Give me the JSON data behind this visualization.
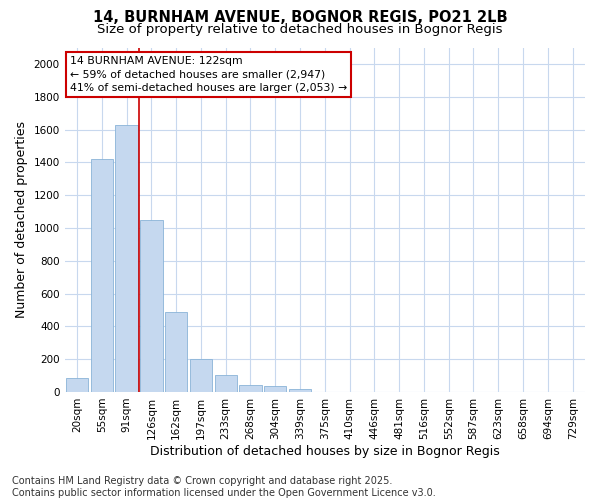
{
  "title_line1": "14, BURNHAM AVENUE, BOGNOR REGIS, PO21 2LB",
  "title_line2": "Size of property relative to detached houses in Bognor Regis",
  "xlabel": "Distribution of detached houses by size in Bognor Regis",
  "ylabel": "Number of detached properties",
  "categories": [
    "20sqm",
    "55sqm",
    "91sqm",
    "126sqm",
    "162sqm",
    "197sqm",
    "233sqm",
    "268sqm",
    "304sqm",
    "339sqm",
    "375sqm",
    "410sqm",
    "446sqm",
    "481sqm",
    "516sqm",
    "552sqm",
    "587sqm",
    "623sqm",
    "658sqm",
    "694sqm",
    "729sqm"
  ],
  "values": [
    85,
    1420,
    1630,
    1050,
    490,
    200,
    105,
    40,
    35,
    20,
    0,
    0,
    0,
    0,
    0,
    0,
    0,
    0,
    0,
    0,
    0
  ],
  "bar_color": "#c5d8ef",
  "bar_edge_color": "#8ab4d8",
  "background_color": "#ffffff",
  "grid_color": "#c8d8ee",
  "red_line_bin_index": 3,
  "red_line_color": "#cc0000",
  "annotation_text": "14 BURNHAM AVENUE: 122sqm\n← 59% of detached houses are smaller (2,947)\n41% of semi-detached houses are larger (2,053) →",
  "annotation_box_color": "#ffffff",
  "annotation_box_edge": "#cc0000",
  "ylim": [
    0,
    2100
  ],
  "yticks": [
    0,
    200,
    400,
    600,
    800,
    1000,
    1200,
    1400,
    1600,
    1800,
    2000
  ],
  "footnote": "Contains HM Land Registry data © Crown copyright and database right 2025.\nContains public sector information licensed under the Open Government Licence v3.0.",
  "title_fontsize": 10.5,
  "subtitle_fontsize": 9.5,
  "label_fontsize": 9,
  "tick_fontsize": 7.5,
  "footnote_fontsize": 7
}
